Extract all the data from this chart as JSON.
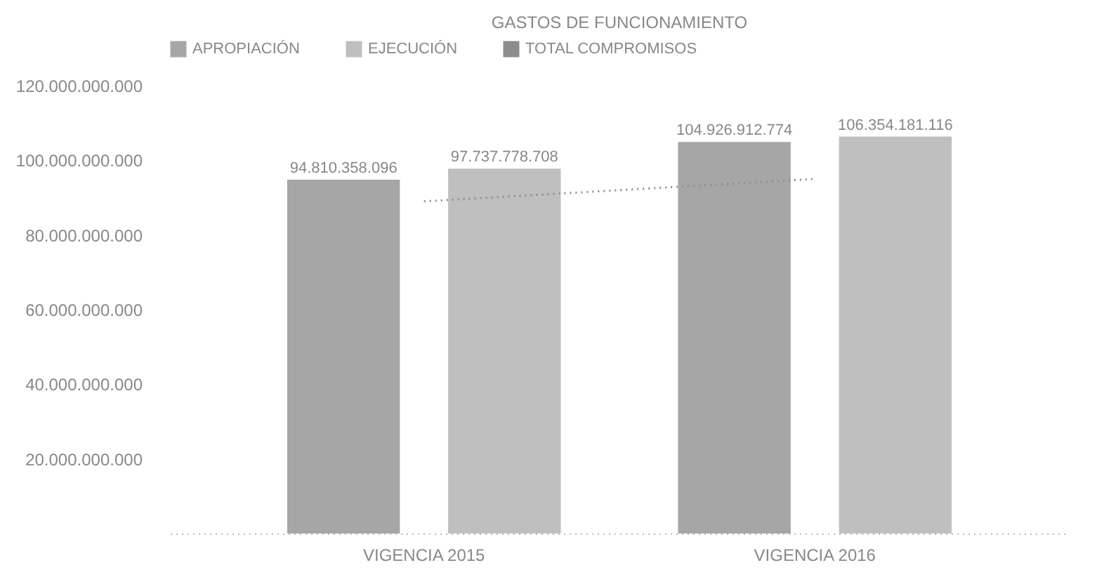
{
  "chart_data": {
    "type": "bar",
    "title": "GASTOS DE FUNCIONAMIENTO",
    "categories": [
      "VIGENCIA 2015",
      "VIGENCIA 2016"
    ],
    "series": [
      {
        "name": "APROPIACIÓN",
        "color": "#a6a6a6",
        "values": [
          94810358096,
          104926912774
        ],
        "value_labels": [
          "94.810.358.096",
          "104.926.912.774"
        ]
      },
      {
        "name": "EJECUCIÓN",
        "color": "#bfbfbf",
        "values": [
          97737778708,
          106354181116
        ],
        "value_labels": [
          "97.737.778.708",
          "106.354.181.116"
        ]
      },
      {
        "name": "TOTAL COMPROMISOS",
        "type": "line",
        "color": "#8c8c8c",
        "values": [
          89000000000,
          95000000000
        ]
      }
    ],
    "ylim": [
      0,
      120000000000
    ],
    "yticks": [
      {
        "value": 0,
        "label": null
      },
      {
        "value": 20000000000,
        "label": "20.000.000.000"
      },
      {
        "value": 40000000000,
        "label": "40.000.000.000"
      },
      {
        "value": 60000000000,
        "label": "60.000.000.000"
      },
      {
        "value": 80000000000,
        "label": "80.000.000.000"
      },
      {
        "value": 100000000000,
        "label": "100.000.000.000"
      },
      {
        "value": 120000000000,
        "label": "120.000.000.000"
      }
    ],
    "legend": "top",
    "line_style": "dotted"
  }
}
